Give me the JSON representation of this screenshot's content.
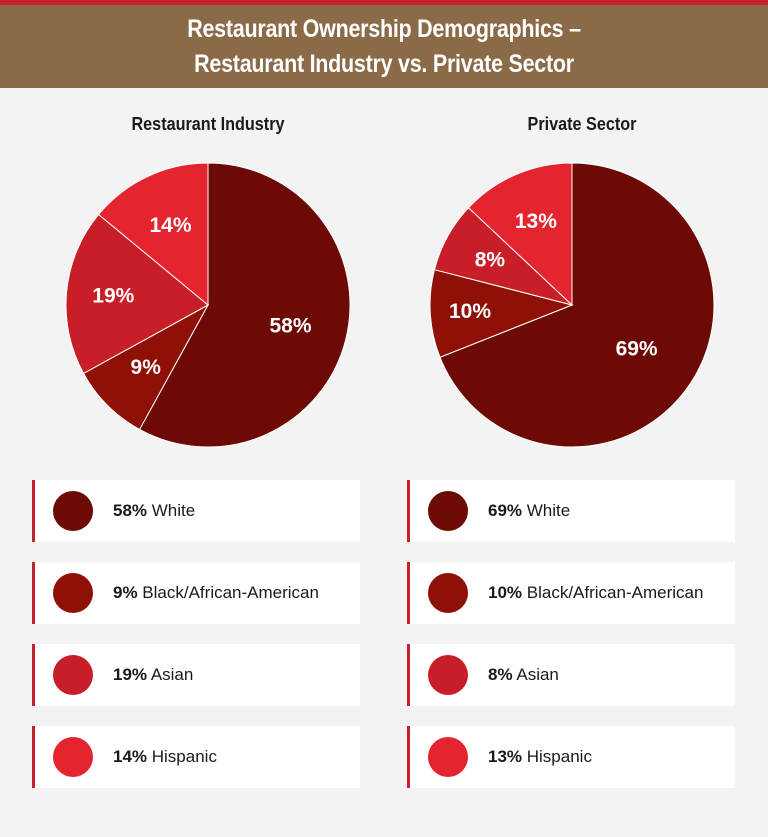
{
  "header": {
    "title_line1": "Restaurant Ownership Demographics –",
    "title_line2": "Restaurant Industry vs. Private Sector"
  },
  "colors": {
    "White": "#6d0a05",
    "Black/African-American": "#8e1006",
    "Asian": "#c71e27",
    "Hispanic": "#e42530",
    "header_bg": "#8b6a48",
    "accent": "#c8202a"
  },
  "chart_data": [
    {
      "type": "pie",
      "title": "Restaurant Industry",
      "slices": [
        {
          "label": "White",
          "value": 58,
          "pct_label": "58%"
        },
        {
          "label": "Black/African-American",
          "value": 9,
          "pct_label": "9%"
        },
        {
          "label": "Asian",
          "value": 19,
          "pct_label": "19%"
        },
        {
          "label": "Hispanic",
          "value": 14,
          "pct_label": "14%"
        }
      ]
    },
    {
      "type": "pie",
      "title": "Private Sector",
      "slices": [
        {
          "label": "White",
          "value": 69,
          "pct_label": "69%"
        },
        {
          "label": "Black/African-American",
          "value": 10,
          "pct_label": "10%"
        },
        {
          "label": "Asian",
          "value": 8,
          "pct_label": "8%"
        },
        {
          "label": "Hispanic",
          "value": 13,
          "pct_label": "13%"
        }
      ]
    }
  ]
}
